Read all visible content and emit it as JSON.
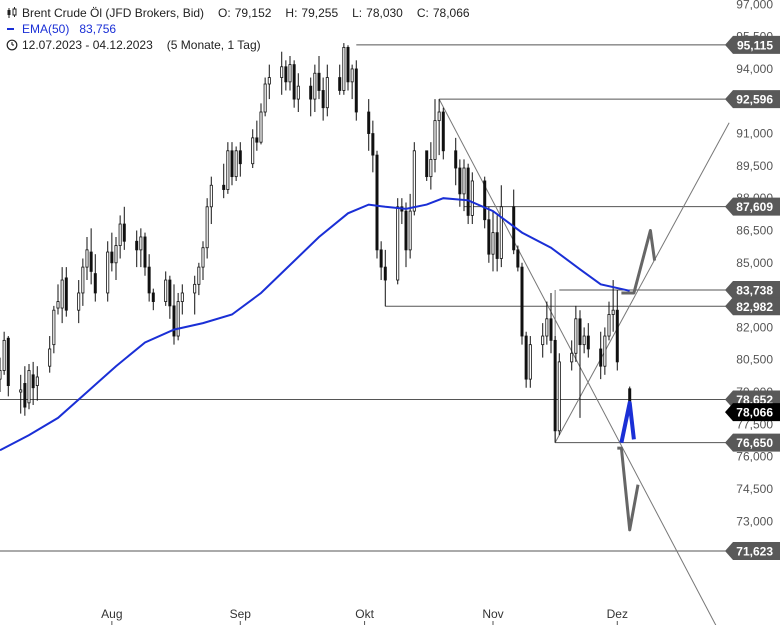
{
  "header": {
    "instrument": "Brent Crude Öl (JFD Brokers, Bid)",
    "o_label": "O:",
    "o_value": "79,152",
    "h_label": "H:",
    "h_value": "79,255",
    "l_label": "L:",
    "l_value": "78,030",
    "c_label": "C:",
    "c_value": "78,066",
    "ema_label": "EMA(50)",
    "ema_value": "83,756",
    "range": "12.07.2023 - 04.12.2023",
    "period": "(5 Monate, 1 Tag)",
    "icons": [
      "candlestick-icon",
      "ema-line-icon",
      "clock-icon"
    ]
  },
  "colors": {
    "ema": "#1a2fd6",
    "candle": "#111111",
    "level_box": "#595959",
    "current_box": "#000000",
    "grid_line": "#555555",
    "projection_grey": "#666666",
    "projection_blue": "#1a2fd6"
  },
  "chart_data": {
    "type": "candlestick",
    "ylim": [
      69.3,
      97.2
    ],
    "y_ticks": [
      "73,000",
      "74,500",
      "76,000",
      "77,500",
      "79,000",
      "80,500",
      "82,000",
      "85,000",
      "86,500",
      "88,000",
      "89,500",
      "91,000",
      "94,000",
      "95,500",
      "97,000"
    ],
    "x_ticks": [
      "Aug",
      "Sep",
      "Okt",
      "Nov",
      "Dez"
    ],
    "x_range_days": [
      "2023-07-05",
      "2023-12-27"
    ],
    "levels": [
      {
        "label": "95,115",
        "value": 95.115,
        "from": "2023-09-29"
      },
      {
        "label": "92,596",
        "value": 92.596,
        "from": "2023-10-19"
      },
      {
        "label": "87,609",
        "value": 87.609,
        "from": "2023-10-25"
      },
      {
        "label": "83,738",
        "value": 83.738,
        "from": "2023-11-17"
      },
      {
        "label": "82,982",
        "value": 82.982,
        "from": "2023-10-06"
      },
      {
        "label": "78,652",
        "value": 78.652,
        "from": "2023-07-05"
      },
      {
        "label": "76,650",
        "value": 76.65,
        "from": "2023-11-16"
      },
      {
        "label": "71,623",
        "value": 71.623,
        "from": "2023-07-05"
      }
    ],
    "current": {
      "label": "78,066",
      "value": 78.066
    },
    "trendlines": [
      {
        "from": [
          "2023-10-19",
          92.6
        ],
        "to": [
          "2023-12-28",
          67.0
        ]
      },
      {
        "from": [
          "2023-11-16",
          76.65
        ],
        "to": [
          "2023-12-28",
          91.5
        ]
      }
    ],
    "projection_grey_up": [
      [
        "2023-12-02",
        83.6
      ],
      [
        "2023-12-05",
        83.6
      ],
      [
        "2023-12-09",
        86.5
      ],
      [
        "2023-12-10",
        85.1
      ]
    ],
    "projection_blue": [
      [
        "2023-12-02",
        76.65
      ],
      [
        "2023-12-04",
        78.5
      ],
      [
        "2023-12-05",
        76.8
      ]
    ],
    "projection_grey_down": [
      [
        "2023-12-01",
        76.4
      ],
      [
        "2023-12-02",
        76.4
      ],
      [
        "2023-12-04",
        72.6
      ],
      [
        "2023-12-06",
        74.7
      ]
    ],
    "ema": [
      [
        "2023-07-05",
        76.3
      ],
      [
        "2023-07-12",
        77.0
      ],
      [
        "2023-07-19",
        77.8
      ],
      [
        "2023-07-26",
        79.0
      ],
      [
        "2023-08-02",
        80.2
      ],
      [
        "2023-08-09",
        81.3
      ],
      [
        "2023-08-16",
        81.9
      ],
      [
        "2023-08-23",
        82.2
      ],
      [
        "2023-08-30",
        82.6
      ],
      [
        "2023-09-06",
        83.6
      ],
      [
        "2023-09-13",
        84.9
      ],
      [
        "2023-09-20",
        86.2
      ],
      [
        "2023-09-27",
        87.3
      ],
      [
        "2023-10-02",
        87.7
      ],
      [
        "2023-10-06",
        87.6
      ],
      [
        "2023-10-11",
        87.5
      ],
      [
        "2023-10-16",
        87.7
      ],
      [
        "2023-10-20",
        88.0
      ],
      [
        "2023-10-26",
        87.9
      ],
      [
        "2023-11-01",
        87.4
      ],
      [
        "2023-11-08",
        86.4
      ],
      [
        "2023-11-15",
        85.7
      ],
      [
        "2023-11-22",
        84.7
      ],
      [
        "2023-11-27",
        84.0
      ],
      [
        "2023-12-04",
        83.7
      ]
    ],
    "candles": [
      [
        "2023-07-05",
        79.6,
        80.6,
        79.0,
        80.0
      ],
      [
        "2023-07-06",
        80.0,
        81.8,
        79.8,
        81.4
      ],
      [
        "2023-07-07",
        81.5,
        81.6,
        78.8,
        79.3
      ],
      [
        "2023-07-10",
        79.0,
        79.8,
        78.0,
        79.1
      ],
      [
        "2023-07-11",
        79.4,
        80.2,
        77.9,
        78.3
      ],
      [
        "2023-07-12",
        78.5,
        80.3,
        78.2,
        80.0
      ],
      [
        "2023-07-13",
        79.8,
        80.4,
        78.4,
        79.2
      ],
      [
        "2023-07-14",
        79.3,
        80.2,
        78.6,
        79.7
      ],
      [
        "2023-07-17",
        80.2,
        81.6,
        79.9,
        81.0
      ],
      [
        "2023-07-18",
        81.2,
        83.0,
        80.8,
        82.8
      ],
      [
        "2023-07-19",
        82.9,
        84.0,
        82.6,
        83.2
      ],
      [
        "2023-07-20",
        82.9,
        84.8,
        82.2,
        84.2
      ],
      [
        "2023-07-21",
        84.3,
        84.8,
        82.5,
        82.8
      ],
      [
        "2023-07-24",
        82.8,
        84.2,
        82.2,
        83.6
      ],
      [
        "2023-07-25",
        83.6,
        85.2,
        83.0,
        84.8
      ],
      [
        "2023-07-26",
        84.8,
        86.2,
        84.2,
        85.6
      ],
      [
        "2023-07-27",
        85.5,
        86.6,
        84.0,
        84.6
      ],
      [
        "2023-07-28",
        84.5,
        85.4,
        83.2,
        83.6
      ],
      [
        "2023-07-31",
        83.6,
        86.0,
        83.2,
        85.5
      ],
      [
        "2023-08-01",
        85.5,
        86.4,
        84.6,
        85.0
      ],
      [
        "2023-08-02",
        85.0,
        86.2,
        84.2,
        85.8
      ],
      [
        "2023-08-03",
        85.8,
        87.2,
        85.2,
        86.8
      ],
      [
        "2023-08-04",
        86.8,
        87.6,
        85.6,
        86.0
      ],
      [
        "2023-08-07",
        86.0,
        86.5,
        84.8,
        85.6
      ],
      [
        "2023-08-08",
        85.6,
        86.6,
        84.8,
        86.2
      ],
      [
        "2023-08-09",
        86.2,
        86.4,
        84.4,
        84.8
      ],
      [
        "2023-08-10",
        84.8,
        85.4,
        83.2,
        83.6
      ],
      [
        "2023-08-11",
        83.6,
        83.8,
        82.8,
        83.2
      ],
      [
        "2023-08-14",
        83.2,
        84.6,
        83.0,
        84.2
      ],
      [
        "2023-08-15",
        84.2,
        84.4,
        82.4,
        83.0
      ],
      [
        "2023-08-16",
        83.0,
        84.0,
        81.2,
        81.6
      ],
      [
        "2023-08-17",
        81.6,
        83.6,
        81.4,
        83.2
      ],
      [
        "2023-08-18",
        83.2,
        84.0,
        82.6,
        83.6
      ],
      [
        "2023-08-21",
        83.6,
        84.4,
        82.6,
        84.0
      ],
      [
        "2023-08-22",
        84.0,
        85.0,
        83.5,
        84.8
      ],
      [
        "2023-08-23",
        84.8,
        86.0,
        84.2,
        85.7
      ],
      [
        "2023-08-24",
        85.7,
        88.0,
        85.2,
        87.6
      ],
      [
        "2023-08-25",
        87.6,
        89.0,
        86.8,
        88.6
      ],
      [
        "2023-08-28",
        88.6,
        89.6,
        88.0,
        88.4
      ],
      [
        "2023-08-29",
        88.4,
        90.6,
        88.2,
        90.2
      ],
      [
        "2023-08-30",
        90.2,
        90.6,
        88.6,
        89.0
      ],
      [
        "2023-08-31",
        89.0,
        90.4,
        88.8,
        90.2
      ],
      [
        "2023-09-01",
        90.2,
        90.6,
        89.0,
        89.6
      ],
      [
        "2023-09-04",
        89.6,
        91.2,
        89.4,
        90.8
      ],
      [
        "2023-09-05",
        90.8,
        91.6,
        90.2,
        90.6
      ],
      [
        "2023-09-06",
        90.6,
        92.4,
        90.5,
        92.0
      ],
      [
        "2023-09-07",
        92.0,
        93.6,
        91.8,
        93.3
      ],
      [
        "2023-09-08",
        93.3,
        94.2,
        92.6,
        93.6
      ],
      [
        "2023-09-11",
        93.6,
        94.8,
        92.8,
        94.1
      ],
      [
        "2023-09-12",
        94.1,
        94.4,
        93.0,
        93.4
      ],
      [
        "2023-09-13",
        93.4,
        94.6,
        93.0,
        94.2
      ],
      [
        "2023-09-14",
        94.2,
        94.4,
        92.2,
        92.6
      ],
      [
        "2023-09-15",
        92.6,
        93.8,
        92.0,
        93.2
      ],
      [
        "2023-09-18",
        93.2,
        93.6,
        91.8,
        92.6
      ],
      [
        "2023-09-19",
        92.6,
        94.2,
        92.0,
        93.8
      ],
      [
        "2023-09-20",
        93.8,
        94.6,
        92.6,
        93.0
      ],
      [
        "2023-09-21",
        93.0,
        93.6,
        91.6,
        92.2
      ],
      [
        "2023-09-22",
        92.2,
        94.2,
        91.8,
        93.6
      ],
      [
        "2023-09-25",
        93.6,
        94.2,
        92.8,
        93.0
      ],
      [
        "2023-09-26",
        93.0,
        95.2,
        92.8,
        95.0
      ],
      [
        "2023-09-27",
        95.0,
        95.1,
        93.0,
        93.4
      ],
      [
        "2023-09-28",
        93.4,
        94.2,
        92.6,
        94.0
      ],
      [
        "2023-09-29",
        94.0,
        94.4,
        91.6,
        92.0
      ],
      [
        "2023-10-02",
        92.0,
        92.6,
        90.2,
        91.0
      ],
      [
        "2023-10-03",
        91.0,
        91.6,
        89.2,
        90.0
      ],
      [
        "2023-10-04",
        90.0,
        90.2,
        85.2,
        85.6
      ],
      [
        "2023-10-05",
        85.6,
        86.0,
        84.2,
        84.8
      ],
      [
        "2023-10-06",
        84.8,
        85.6,
        82.98,
        84.2
      ],
      [
        "2023-10-09",
        84.2,
        88.0,
        84.0,
        87.6
      ],
      [
        "2023-10-10",
        87.6,
        88.0,
        86.8,
        87.4
      ],
      [
        "2023-10-11",
        87.4,
        87.8,
        84.8,
        85.6
      ],
      [
        "2023-10-12",
        85.6,
        88.2,
        85.2,
        87.4
      ],
      [
        "2023-10-13",
        87.4,
        90.6,
        87.2,
        90.2
      ],
      [
        "2023-10-16",
        90.2,
        90.2,
        88.8,
        89.0
      ],
      [
        "2023-10-17",
        89.0,
        90.6,
        88.4,
        89.8
      ],
      [
        "2023-10-18",
        89.8,
        92.6,
        89.2,
        91.6
      ],
      [
        "2023-10-19",
        91.6,
        92.6,
        90.0,
        92.0
      ],
      [
        "2023-10-20",
        92.0,
        92.2,
        89.8,
        90.2
      ],
      [
        "2023-10-23",
        90.2,
        90.8,
        88.6,
        89.4
      ],
      [
        "2023-10-24",
        89.4,
        89.8,
        87.6,
        88.2
      ],
      [
        "2023-10-25",
        88.2,
        89.8,
        87.4,
        89.4
      ],
      [
        "2023-10-26",
        89.4,
        89.6,
        86.8,
        87.2
      ],
      [
        "2023-10-27",
        87.2,
        89.2,
        86.8,
        88.8
      ],
      [
        "2023-10-30",
        88.8,
        89.0,
        86.6,
        87.0
      ],
      [
        "2023-10-31",
        87.0,
        87.6,
        85.0,
        85.4
      ],
      [
        "2023-11-01",
        85.4,
        87.4,
        84.6,
        86.4
      ],
      [
        "2023-11-02",
        86.4,
        87.2,
        84.6,
        85.2
      ],
      [
        "2023-11-03",
        85.2,
        88.6,
        84.8,
        87.6
      ],
      [
        "2023-11-06",
        87.6,
        88.4,
        85.4,
        85.6
      ],
      [
        "2023-11-07",
        85.6,
        85.8,
        84.6,
        84.8
      ],
      [
        "2023-11-08",
        84.8,
        85.0,
        81.2,
        81.6
      ],
      [
        "2023-11-09",
        81.6,
        81.8,
        79.2,
        79.6
      ],
      [
        "2023-11-10",
        79.6,
        81.6,
        79.2,
        81.2
      ],
      [
        "2023-11-13",
        81.2,
        82.2,
        80.6,
        81.6
      ],
      [
        "2023-11-14",
        81.6,
        83.2,
        81.2,
        82.4
      ],
      [
        "2023-11-15",
        82.4,
        83.6,
        80.8,
        81.4
      ],
      [
        "2023-11-16",
        81.4,
        81.6,
        76.65,
        77.2
      ],
      [
        "2023-11-17",
        77.2,
        80.8,
        77.0,
        80.4
      ],
      [
        "2023-11-20",
        80.4,
        81.4,
        80.0,
        80.8
      ],
      [
        "2023-11-21",
        80.8,
        83.0,
        80.4,
        82.4
      ],
      [
        "2023-11-22",
        82.4,
        82.8,
        77.8,
        81.2
      ],
      [
        "2023-11-23",
        81.2,
        82.0,
        80.8,
        81.6
      ],
      [
        "2023-11-24",
        81.6,
        82.2,
        80.6,
        81.0
      ],
      [
        "2023-11-27",
        81.0,
        81.8,
        79.6,
        80.2
      ],
      [
        "2023-11-28",
        80.2,
        82.0,
        79.8,
        81.6
      ],
      [
        "2023-11-29",
        81.6,
        83.2,
        81.4,
        82.6
      ],
      [
        "2023-11-30",
        82.6,
        84.2,
        81.8,
        82.8
      ],
      [
        "2023-12-01",
        82.8,
        83.74,
        80.0,
        80.4
      ],
      [
        "2023-12-04",
        79.152,
        79.255,
        78.03,
        78.066
      ]
    ]
  }
}
